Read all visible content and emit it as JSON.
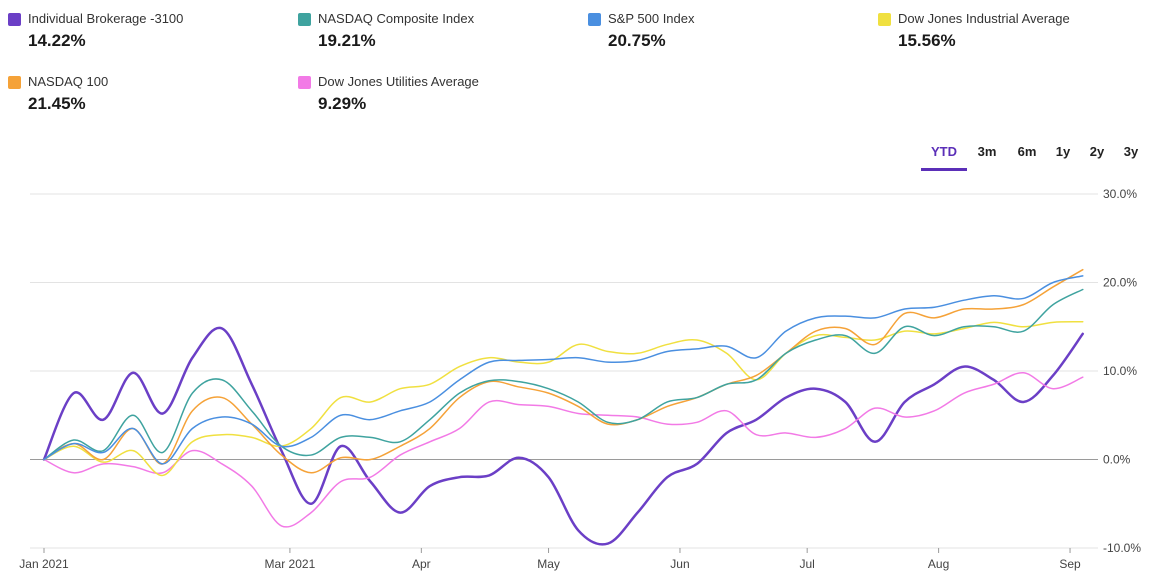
{
  "legend": [
    {
      "name": "Individual Brokerage -3100",
      "value": "14.22%",
      "color": "#6b3fc6"
    },
    {
      "name": "NASDAQ Composite Index",
      "value": "19.21%",
      "color": "#3fa39f"
    },
    {
      "name": "S&P 500 Index",
      "value": "20.75%",
      "color": "#4a8fe0"
    },
    {
      "name": "Dow Jones Industrial Average",
      "value": "15.56%",
      "color": "#f0e040"
    },
    {
      "name": "NASDAQ 100",
      "value": "21.45%",
      "color": "#f5a238"
    },
    {
      "name": "Dow Jones Utilities Average",
      "value": "9.29%",
      "color": "#f27ae6"
    }
  ],
  "tabs": [
    {
      "label": "YTD",
      "active": true
    },
    {
      "label": "3m",
      "active": false
    },
    {
      "label": "6m",
      "active": false
    },
    {
      "label": "1y",
      "active": false
    },
    {
      "label": "2y",
      "active": false
    },
    {
      "label": "3y",
      "active": false
    }
  ],
  "chart_data": {
    "type": "line",
    "title": "",
    "xlabel": "",
    "ylabel": "",
    "ylim": [
      -10,
      30
    ],
    "yticks": [
      {
        "value": 30,
        "label": "30.0%"
      },
      {
        "value": 20,
        "label": "20.0%"
      },
      {
        "value": 10,
        "label": "10.0%"
      },
      {
        "value": 0,
        "label": "0.0%"
      },
      {
        "value": -10,
        "label": "-10.0%"
      }
    ],
    "xlim": [
      0,
      246
    ],
    "xticks": [
      {
        "day": 0,
        "label": "Jan 2021"
      },
      {
        "day": 58,
        "label": "Mar 2021"
      },
      {
        "day": 89,
        "label": "Apr"
      },
      {
        "day": 119,
        "label": "May"
      },
      {
        "day": 150,
        "label": "Jun"
      },
      {
        "day": 180,
        "label": "Jul"
      },
      {
        "day": 211,
        "label": "Aug"
      },
      {
        "day": 242,
        "label": "Sep"
      }
    ],
    "x": [
      0,
      7,
      14,
      21,
      28,
      35,
      42,
      49,
      56,
      63,
      70,
      77,
      84,
      91,
      98,
      105,
      112,
      119,
      126,
      133,
      140,
      147,
      154,
      161,
      168,
      175,
      182,
      189,
      196,
      203,
      210,
      217,
      224,
      231,
      238,
      245
    ],
    "series": [
      {
        "name": "Individual Brokerage -3100",
        "color": "#6b3fc6",
        "width": 2.5,
        "values": [
          0,
          7.5,
          4.5,
          9.8,
          5.2,
          11.5,
          14.8,
          8.5,
          1.0,
          -5.0,
          1.5,
          -2.5,
          -6.0,
          -3.0,
          -2.0,
          -1.8,
          0.2,
          -2.0,
          -8.0,
          -9.5,
          -6.0,
          -2.0,
          -0.5,
          3.0,
          4.5,
          7.0,
          8.0,
          6.5,
          2.0,
          6.5,
          8.5,
          10.5,
          9.0,
          6.5,
          9.5,
          14.2
        ]
      },
      {
        "name": "Dow Jones Utilities Average",
        "color": "#f27ae6",
        "width": 1.5,
        "values": [
          0,
          -1.5,
          -0.5,
          -0.8,
          -1.5,
          1.0,
          -0.5,
          -3.0,
          -7.5,
          -6.0,
          -2.5,
          -2.0,
          0.5,
          2.0,
          3.5,
          6.5,
          6.2,
          6.0,
          5.2,
          5.0,
          4.8,
          4.0,
          4.2,
          5.5,
          2.8,
          3.0,
          2.5,
          3.5,
          5.8,
          4.8,
          5.5,
          7.5,
          8.5,
          9.8,
          8.0,
          9.3
        ]
      },
      {
        "name": "Dow Jones Industrial Average",
        "color": "#f0e040",
        "width": 1.5,
        "values": [
          0,
          1.5,
          -0.3,
          1.0,
          -1.8,
          2.0,
          2.8,
          2.5,
          1.5,
          3.5,
          7.0,
          6.5,
          8.0,
          8.5,
          10.5,
          11.5,
          11.0,
          11.0,
          13.0,
          12.2,
          12.0,
          13.0,
          13.5,
          12.0,
          9.0,
          12.0,
          14.0,
          13.8,
          13.5,
          14.5,
          14.2,
          14.8,
          15.5,
          15.0,
          15.5,
          15.56
        ]
      },
      {
        "name": "NASDAQ 100",
        "color": "#f5a238",
        "width": 1.5,
        "values": [
          0,
          1.8,
          0.0,
          3.5,
          -0.5,
          5.5,
          7.0,
          4.0,
          0.5,
          -1.5,
          0.2,
          0.0,
          1.5,
          3.5,
          7.0,
          8.8,
          8.2,
          7.5,
          6.0,
          4.0,
          4.5,
          6.0,
          7.0,
          8.5,
          9.5,
          12.0,
          14.5,
          14.8,
          13.0,
          16.5,
          16.0,
          17.0,
          17.0,
          17.5,
          19.5,
          21.45
        ]
      },
      {
        "name": "NASDAQ Composite Index",
        "color": "#3fa39f",
        "width": 1.5,
        "values": [
          0,
          2.2,
          1.0,
          5.0,
          0.8,
          7.5,
          9.0,
          5.5,
          1.5,
          0.5,
          2.5,
          2.5,
          2.0,
          4.5,
          7.5,
          8.9,
          8.8,
          8.0,
          6.5,
          4.2,
          4.5,
          6.5,
          7.0,
          8.5,
          9.0,
          12.0,
          13.5,
          14.0,
          12.0,
          15.0,
          14.0,
          15.0,
          15.0,
          14.5,
          17.5,
          19.21
        ]
      },
      {
        "name": "S&P 500 Index",
        "color": "#4a8fe0",
        "width": 1.5,
        "values": [
          0,
          1.8,
          0.8,
          3.5,
          -0.5,
          3.5,
          4.8,
          4.0,
          1.5,
          2.5,
          5.0,
          4.5,
          5.5,
          6.5,
          9.0,
          11.0,
          11.2,
          11.3,
          11.5,
          11.0,
          11.2,
          12.2,
          12.5,
          12.8,
          11.5,
          14.5,
          16.0,
          16.2,
          16.0,
          17.0,
          17.2,
          18.0,
          18.5,
          18.2,
          20.0,
          20.75
        ]
      }
    ]
  }
}
